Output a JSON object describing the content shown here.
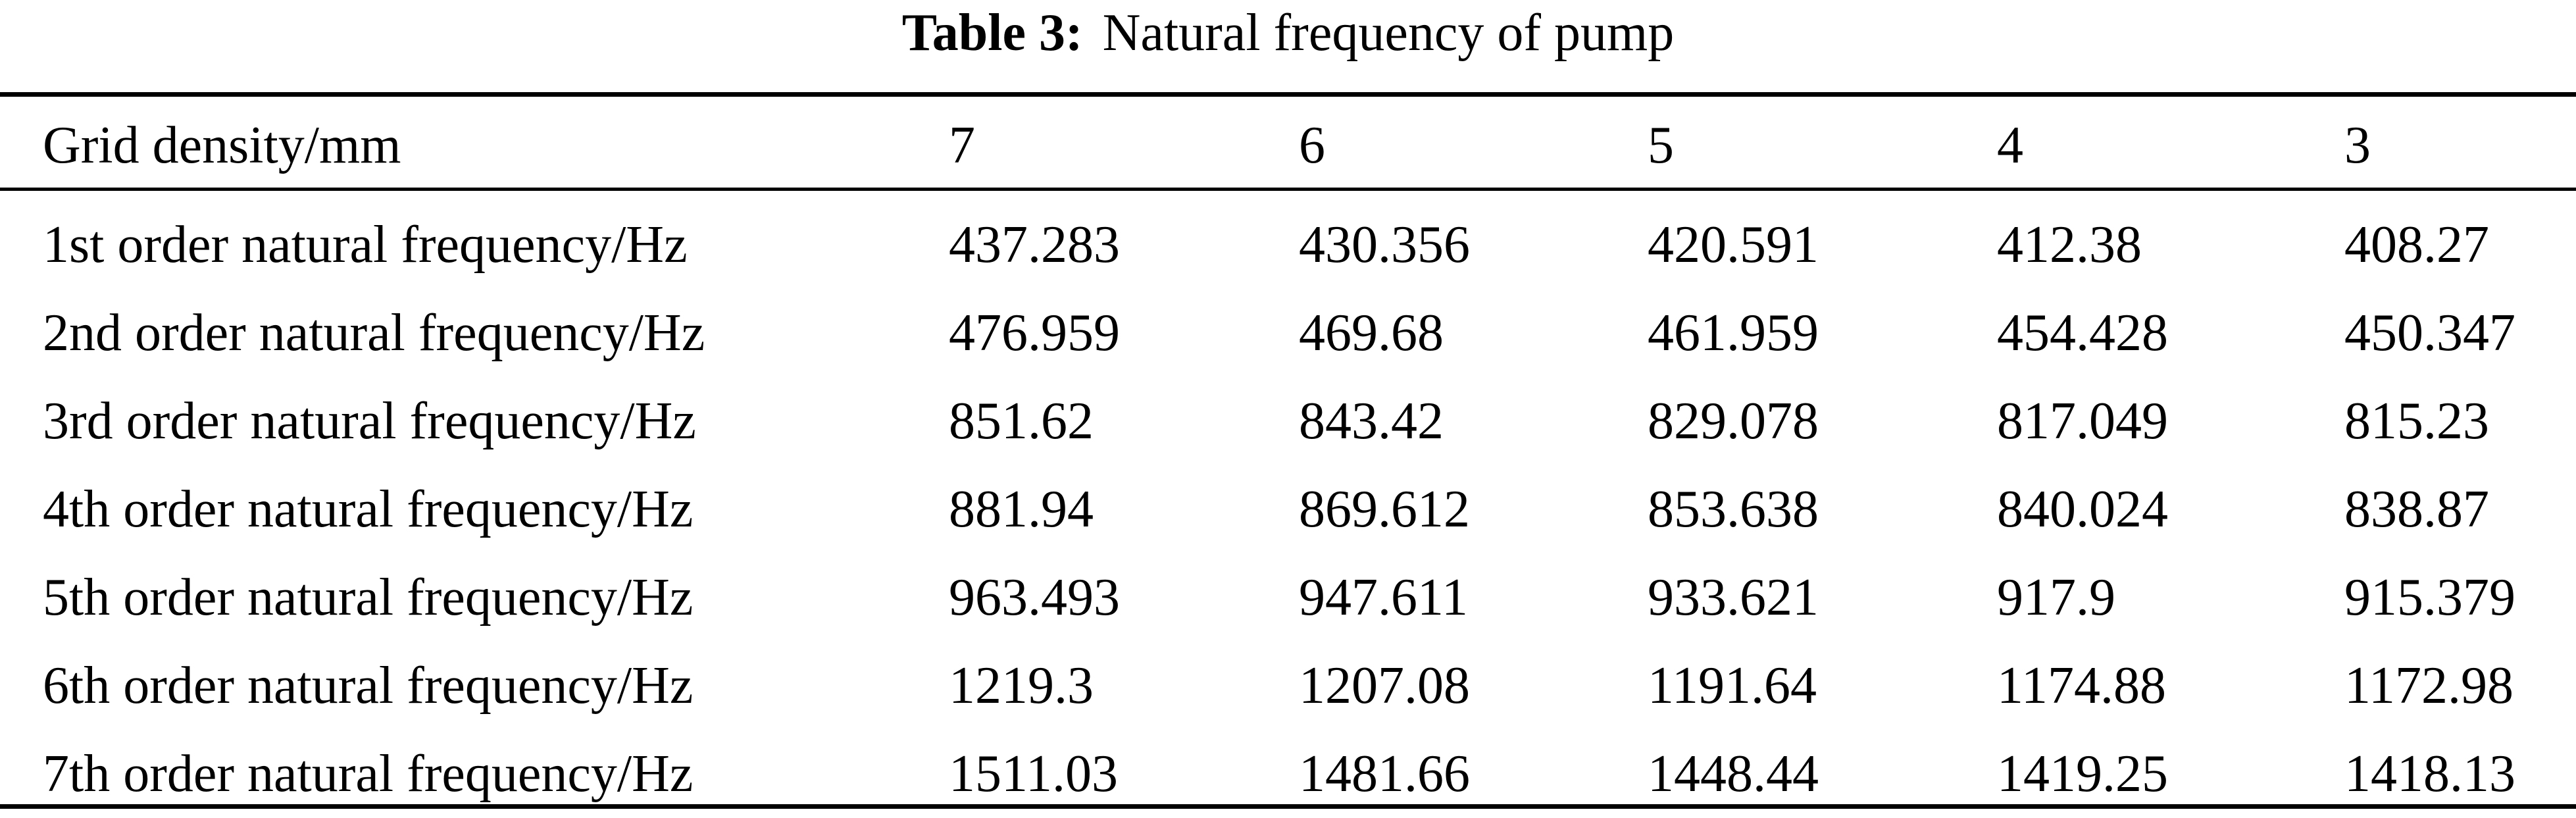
{
  "caption": {
    "label": "Table 3:",
    "text": "Natural frequency of pump"
  },
  "table": {
    "columns": [
      "Grid density/mm",
      "7",
      "6",
      "5",
      "4",
      "3"
    ],
    "rows": [
      [
        "1st order natural frequency/Hz",
        "437.283",
        "430.356",
        "420.591",
        "412.38",
        "408.27"
      ],
      [
        "2nd order natural frequency/Hz",
        "476.959",
        "469.68",
        "461.959",
        "454.428",
        "450.347"
      ],
      [
        "3rd order natural frequency/Hz",
        "851.62",
        "843.42",
        "829.078",
        "817.049",
        "815.23"
      ],
      [
        "4th order natural frequency/Hz",
        "881.94",
        "869.612",
        "853.638",
        "840.024",
        "838.87"
      ],
      [
        "5th order natural frequency/Hz",
        "963.493",
        "947.611",
        "933.621",
        "917.9",
        "915.379"
      ],
      [
        "6th order natural frequency/Hz",
        "1219.3",
        "1207.08",
        "1191.64",
        "1174.88",
        "1172.98"
      ],
      [
        "7th order natural frequency/Hz",
        "1511.03",
        "1481.66",
        "1448.44",
        "1419.25",
        "1418.13"
      ]
    ]
  }
}
